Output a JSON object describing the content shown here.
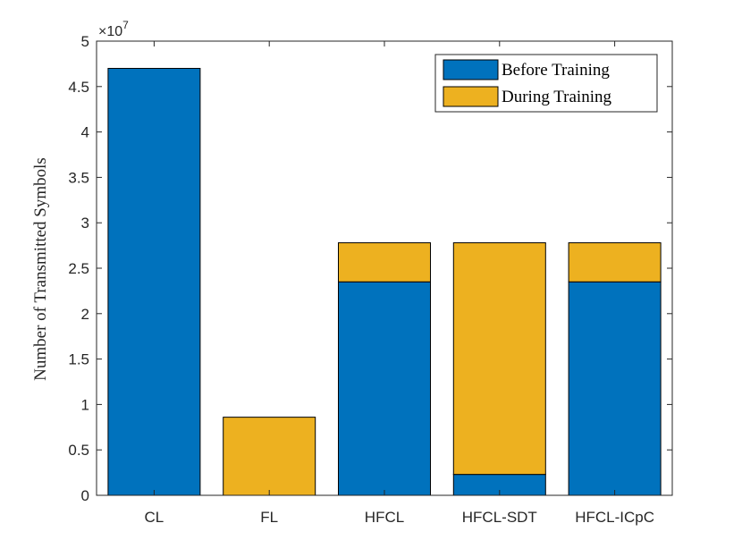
{
  "chart_data": {
    "type": "bar",
    "stacked": true,
    "categories": [
      "CL",
      "FL",
      "HFCL",
      "HFCL-SDT",
      "HFCL-ICpC"
    ],
    "series": [
      {
        "name": "Before Training",
        "color": "#0072BD",
        "values": [
          4.7,
          0,
          2.35,
          0.23,
          2.35
        ]
      },
      {
        "name": "During Training",
        "color": "#EDB120",
        "values": [
          0,
          0.86,
          0.43,
          2.55,
          0.43
        ]
      }
    ],
    "ylabel": "Number of Transmitted Symbols",
    "xlabel": "",
    "ylim": [
      0,
      5
    ],
    "yticks": [
      "0",
      "0.5",
      "1",
      "1.5",
      "2",
      "2.5",
      "3",
      "3.5",
      "4",
      "4.5",
      "5"
    ],
    "ytick_values": [
      0,
      0.5,
      1,
      1.5,
      2,
      2.5,
      3,
      3.5,
      4,
      4.5,
      5
    ],
    "y_multiplier": {
      "base": "×10",
      "exponent": "7"
    },
    "legend_position": "top-right",
    "grid": false
  }
}
